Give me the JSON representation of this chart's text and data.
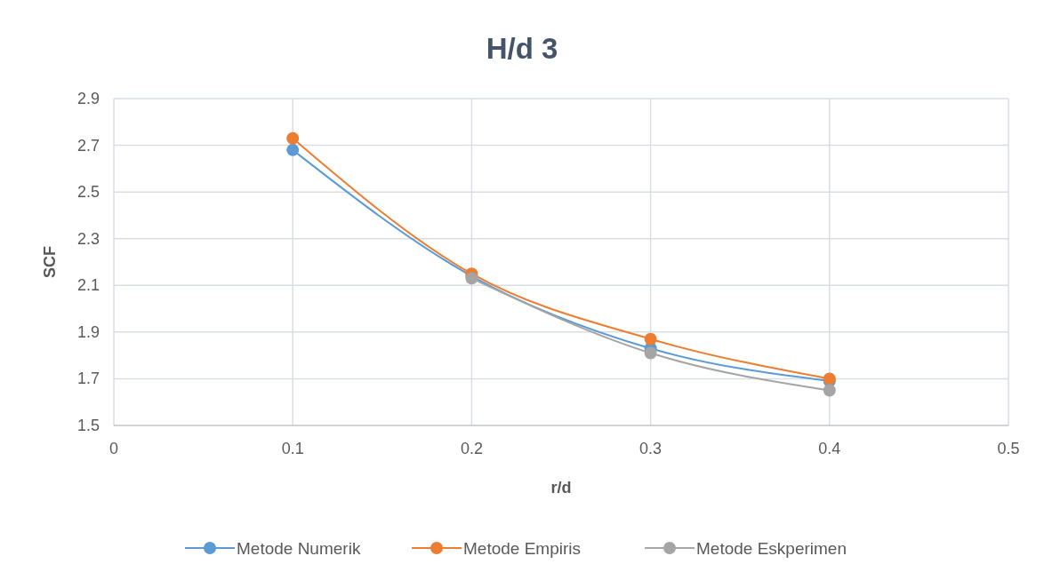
{
  "chart_data": {
    "type": "line",
    "title": "H/d 3",
    "xlabel": "r/d",
    "ylabel": "SCF",
    "x": [
      0.1,
      0.2,
      0.3,
      0.4
    ],
    "series": [
      {
        "name": "Metode Numerik",
        "color": "#5b9bd5",
        "values": [
          2.68,
          2.14,
          1.83,
          1.69
        ]
      },
      {
        "name": "Metode Empiris",
        "color": "#ed7d31",
        "values": [
          2.73,
          2.15,
          1.87,
          1.7
        ]
      },
      {
        "name": "Metode Eskperimen",
        "color": "#a5a5a5",
        "values": [
          null,
          2.13,
          1.81,
          1.65
        ]
      }
    ],
    "xlim": [
      0,
      0.5
    ],
    "xticks": [
      0,
      0.1,
      0.2,
      0.3,
      0.4,
      0.5
    ],
    "ylim": [
      1.5,
      2.9
    ],
    "yticks": [
      1.5,
      1.7,
      1.9,
      2.1,
      2.3,
      2.5,
      2.7,
      2.9
    ],
    "grid": true,
    "legend": "bottom",
    "marker": "circle",
    "line_style": "solid"
  }
}
